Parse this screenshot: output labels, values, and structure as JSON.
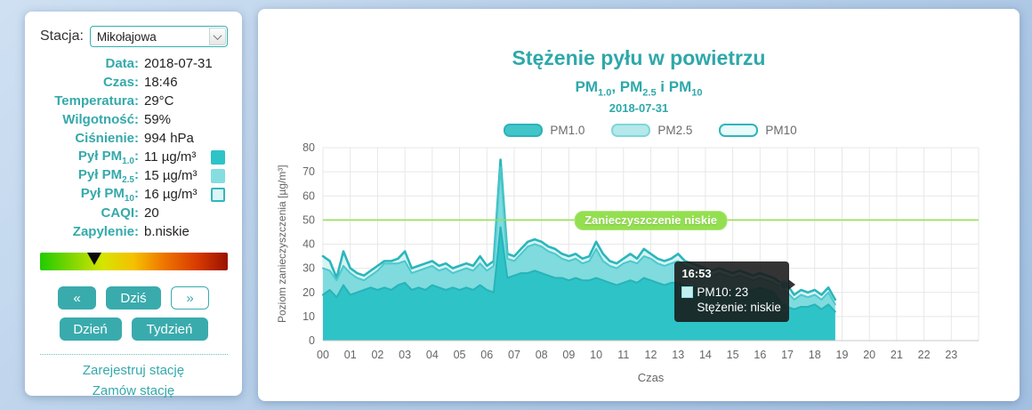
{
  "sidebar": {
    "station_label": "Stacja:",
    "station": {
      "value": "Mikołajowa"
    },
    "info_rows": [
      {
        "label": "Data",
        "value": "2018-07-31"
      },
      {
        "label": "Czas",
        "value": "18:46"
      },
      {
        "label": "Temperatura",
        "value": "29°C"
      },
      {
        "label": "Wilgotność",
        "value": "59%"
      },
      {
        "label": "Ciśnienie",
        "value": "994 hPa"
      },
      {
        "label": "Pył PM",
        "sub": "1.0",
        "value": "11 µg/m³",
        "swatch_fill": "#2ec3c7",
        "swatch_border": "#2ec3c7"
      },
      {
        "label": "Pył PM",
        "sub": "2.5",
        "value": "15 µg/m³",
        "swatch_fill": "#86dde0",
        "swatch_border": "#86dde0"
      },
      {
        "label": "Pył PM",
        "sub": "10",
        "value": "16 µg/m³",
        "swatch_fill": "#ddf5f6",
        "swatch_border": "#2eb8bd"
      },
      {
        "label": "CAQI",
        "value": "20"
      },
      {
        "label": "Zapylenie",
        "value": "b.niskie"
      }
    ],
    "caqi_gradient": [
      "#1fcc00",
      "#7ed600",
      "#d6e400",
      "#f5c000",
      "#ee7300",
      "#d83c00",
      "#9b1000"
    ],
    "caqi_marker_pos": 0.29,
    "nav_buttons": [
      {
        "id": "prev",
        "label": "«",
        "variant": "solid",
        "width": "w-s"
      },
      {
        "id": "today",
        "label": "Dziś",
        "variant": "solid",
        "width": "w-m"
      },
      {
        "id": "next",
        "label": "»",
        "variant": "outline",
        "width": "w-s"
      }
    ],
    "range_buttons": [
      {
        "id": "day",
        "label": "Dzień",
        "width": "w-d"
      },
      {
        "id": "week",
        "label": "Tydzień",
        "width": "w-t"
      }
    ],
    "links": [
      {
        "id": "register",
        "label": "Zarejestruj stację"
      },
      {
        "id": "order",
        "label": "Zamów stację"
      }
    ]
  },
  "chart_data": {
    "type": "area",
    "title": "Stężenie pyłu w powietrzu",
    "subtitle_parts": [
      {
        "t": "PM"
      },
      {
        "sub": "1.0"
      },
      {
        "t": ", PM"
      },
      {
        "sub": "2.5"
      },
      {
        "t": " i PM"
      },
      {
        "sub": "10"
      }
    ],
    "date": "2018-07-31",
    "xlabel": "Czas",
    "ylabel": "Poziom zanieczyszczenia [µg/m³]",
    "ylim": [
      0,
      80
    ],
    "yticks": [
      0,
      10,
      20,
      30,
      40,
      50,
      60,
      70,
      80
    ],
    "xticks": [
      "00",
      "01",
      "02",
      "03",
      "04",
      "05",
      "06",
      "07",
      "08",
      "09",
      "10",
      "11",
      "12",
      "13",
      "14",
      "15",
      "16",
      "17",
      "18",
      "19",
      "20",
      "21",
      "22",
      "23"
    ],
    "x_start_hour": 0,
    "x_step_hours": 0.25,
    "grid": true,
    "legend_position": "top",
    "legend": [
      {
        "label": "PM1.0",
        "fill": "#41c5c9",
        "border": "#2bb3b8"
      },
      {
        "label": "PM2.5",
        "fill": "#b4e8ea",
        "border": "#7ed7da"
      },
      {
        "label": "PM10",
        "fill": "#e8fafa",
        "border": "#2eb5ba"
      }
    ],
    "threshold": {
      "value": 50,
      "label": "Zanieczyszczenie niskie",
      "line_color": "#92df4c",
      "pill_color": "#94df50"
    },
    "series": [
      {
        "name": "PM10",
        "fill": "#d7f3f4",
        "line": "#2ab6bb",
        "line_width": 2.6,
        "values": [
          35,
          33,
          26,
          37,
          30,
          28,
          27,
          29,
          31,
          33,
          33,
          34,
          37,
          30,
          31,
          32,
          33,
          31,
          32,
          30,
          31,
          32,
          31,
          35,
          31,
          33,
          75,
          36,
          35,
          38,
          41,
          42,
          41,
          39,
          38,
          36,
          35,
          36,
          34,
          35,
          41,
          36,
          33,
          32,
          34,
          36,
          34,
          38,
          36,
          34,
          33,
          34,
          36,
          33,
          32,
          31,
          30,
          29,
          30,
          29,
          28,
          29,
          28,
          27,
          28,
          27,
          26,
          24,
          23,
          19,
          21,
          20,
          21,
          19,
          22,
          17
        ]
      },
      {
        "name": "PM2.5",
        "fill": "#7fdbde",
        "line": "#4cc8cc",
        "line_width": 2,
        "values": [
          30,
          29,
          25,
          31,
          28,
          26,
          25,
          27,
          29,
          32,
          32,
          32,
          33,
          28,
          29,
          30,
          31,
          29,
          30,
          28,
          29,
          30,
          29,
          32,
          29,
          31,
          72,
          34,
          33,
          36,
          39,
          40,
          39,
          37,
          36,
          34,
          33,
          34,
          32,
          33,
          38,
          33,
          31,
          30,
          32,
          33,
          32,
          35,
          34,
          32,
          31,
          32,
          33,
          31,
          30,
          29,
          28,
          27,
          28,
          27,
          26,
          27,
          26,
          25,
          26,
          25,
          24,
          22,
          20,
          17,
          19,
          18,
          19,
          17,
          20,
          15
        ]
      },
      {
        "name": "PM1.0",
        "fill": "#2ec3c7",
        "line": "#26b4b8",
        "line_width": 2,
        "values": [
          19,
          21,
          18,
          23,
          19,
          20,
          21,
          22,
          21,
          22,
          21,
          23,
          24,
          21,
          22,
          21,
          23,
          22,
          21,
          22,
          21,
          22,
          21,
          23,
          21,
          20,
          47,
          26,
          27,
          28,
          28,
          29,
          28,
          27,
          26,
          26,
          25,
          26,
          25,
          25,
          26,
          25,
          24,
          23,
          24,
          25,
          24,
          26,
          25,
          24,
          23,
          24,
          24,
          23,
          22,
          22,
          22,
          21,
          22,
          21,
          21,
          22,
          21,
          21,
          22,
          21,
          20,
          16,
          14,
          13,
          14,
          14,
          15,
          13,
          15,
          12
        ]
      }
    ],
    "tooltip": {
      "time": "16:53",
      "series_label": "PM10: 23",
      "status_label": "Stężenie: niskie",
      "swatch_fill": "#c2eef0",
      "swatch_border": "#8fdfe2",
      "hour": 16.88,
      "markers": [
        {
          "series": "PM10",
          "value": 23
        },
        {
          "series": "PM1.0",
          "value": 14
        }
      ]
    }
  }
}
